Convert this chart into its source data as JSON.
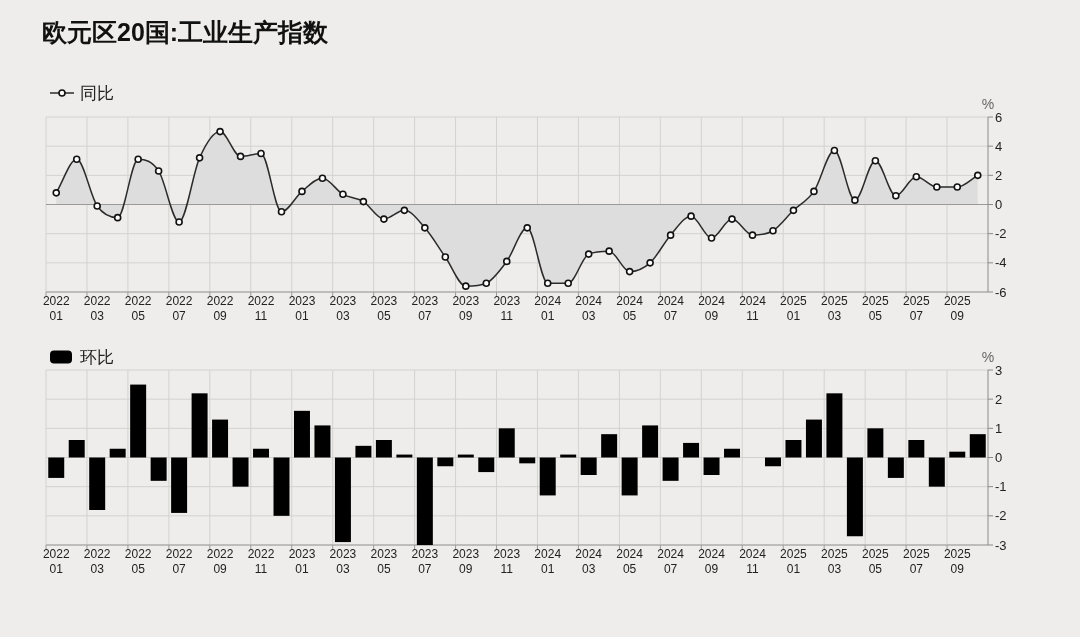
{
  "chart_data": [
    {
      "type": "area",
      "title": "欧元区20国:工业生产指数",
      "ylabel": "%",
      "categories": [
        "2022 01",
        null,
        "2022 03",
        null,
        "2022 05",
        null,
        "2022 07",
        null,
        "2022 09",
        null,
        "2022 11",
        null,
        "2023 01",
        null,
        "2023 03",
        null,
        "2023 05",
        null,
        "2023 07",
        null,
        "2023 09",
        null,
        "2023 11",
        null,
        "2024 01",
        null,
        "2024 03",
        null,
        "2024 05",
        null,
        "2024 07",
        null,
        "2024 09",
        null,
        "2024 11",
        null,
        "2025 01",
        null,
        "2025 03",
        null,
        "2025 05",
        null,
        "2025 07",
        null,
        "2025 09",
        null
      ],
      "series": [
        {
          "name": "同比",
          "color": "#2b2b2b",
          "values": [
            0.8,
            3.1,
            -0.1,
            -0.9,
            3.1,
            2.3,
            -1.2,
            3.2,
            5.0,
            3.3,
            3.5,
            -0.5,
            0.9,
            1.8,
            0.7,
            0.2,
            -1.0,
            -0.4,
            -1.6,
            -3.6,
            -5.6,
            -5.4,
            -3.9,
            -1.6,
            -5.4,
            -5.4,
            -3.4,
            -3.2,
            -4.6,
            -4.0,
            -2.1,
            -0.8,
            -2.3,
            -1.0,
            -2.1,
            -1.8,
            -0.4,
            0.9,
            3.7,
            0.3,
            3.0,
            0.6,
            1.9,
            1.2,
            1.2,
            2.0
          ]
        }
      ],
      "ylim": [
        -6,
        6
      ],
      "yticks": [
        -6,
        -4,
        -2,
        0,
        2,
        4,
        6
      ],
      "grid": true,
      "legend": "top left",
      "marker": "circle"
    },
    {
      "type": "bar",
      "ylabel": "%",
      "categories": [
        "2022 01",
        null,
        "2022 03",
        null,
        "2022 05",
        null,
        "2022 07",
        null,
        "2022 09",
        null,
        "2022 11",
        null,
        "2023 01",
        null,
        "2023 03",
        null,
        "2023 05",
        null,
        "2023 07",
        null,
        "2023 09",
        null,
        "2023 11",
        null,
        "2024 01",
        null,
        "2024 03",
        null,
        "2024 05",
        null,
        "2024 07",
        null,
        "2024 09",
        null,
        "2024 11",
        null,
        "2025 01",
        null,
        "2025 03",
        null,
        "2025 05",
        null,
        "2025 07",
        null,
        "2025 09",
        null
      ],
      "series": [
        {
          "name": "环比",
          "color": "#000000",
          "values": [
            -0.7,
            0.6,
            -1.8,
            0.3,
            2.5,
            -0.8,
            -1.9,
            2.2,
            1.3,
            -1.0,
            0.3,
            -2.0,
            1.6,
            1.1,
            -2.9,
            0.4,
            0.6,
            0.1,
            -3.0,
            -0.3,
            0.1,
            -0.5,
            1.0,
            -0.2,
            -1.3,
            0.1,
            -0.6,
            0.8,
            -1.3,
            1.1,
            -0.8,
            0.5,
            -0.6,
            0.3,
            0,
            -0.3,
            0.6,
            1.3,
            2.2,
            -2.7,
            1.0,
            -0.7,
            0.6,
            -1.0,
            0.2,
            0.8
          ]
        }
      ],
      "ylim": [
        -3,
        3
      ],
      "yticks": [
        -3,
        -2,
        -1,
        0,
        1,
        2,
        3
      ],
      "grid": true,
      "legend": "top left"
    }
  ]
}
